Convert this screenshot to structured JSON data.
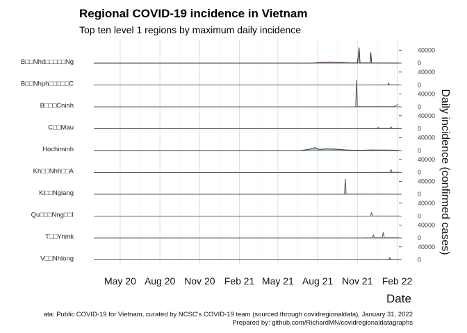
{
  "chart_data": {
    "type": "line",
    "title": "Regional COVID-19 incidence in Vietnam",
    "subtitle": "Top ten level 1 regions by maximum daily incidence",
    "xlabel": "Date",
    "ylabel": "Daily incidence (confirmed cases)",
    "x_ticks": [
      "May 20",
      "Aug 20",
      "Nov 20",
      "Feb 21",
      "May 21",
      "Aug 21",
      "Nov 21",
      "Feb 22"
    ],
    "y_ticks": [
      "40000",
      "0"
    ],
    "ylim": [
      0,
      60000
    ],
    "xlim": [
      "2020-03-01",
      "2022-02-05"
    ],
    "grid": true,
    "caption_line1": "ata: Public COVID-19 for Vietnam, curated by NCSC's COVID-19 team (sourced through covidregionaldata), January 31, 2022",
    "caption_line2": "Prepared by: github.com/RichardMN/covidregionaldatagraphs",
    "series": [
      {
        "name": "B□□Nhd□□□□□Ng",
        "color": "#e06666",
        "fill": true,
        "points": [
          [
            "2020-03-01",
            0
          ],
          [
            "2021-07-20",
            0
          ],
          [
            "2021-08-01",
            1500
          ],
          [
            "2021-08-15",
            3000
          ],
          [
            "2021-09-01",
            3500
          ],
          [
            "2021-09-15",
            2800
          ],
          [
            "2021-10-01",
            1500
          ],
          [
            "2021-10-15",
            800
          ],
          [
            "2021-11-01",
            500
          ],
          [
            "2021-11-05",
            48000
          ],
          [
            "2021-11-07",
            500
          ],
          [
            "2021-11-30",
            500
          ],
          [
            "2021-12-02",
            33000
          ],
          [
            "2021-12-04",
            600
          ],
          [
            "2022-02-05",
            300
          ]
        ]
      },
      {
        "name": "B□□Nhph□□□□□C",
        "color": "#555555",
        "fill": false,
        "points": [
          [
            "2020-03-01",
            0
          ],
          [
            "2021-11-01",
            0
          ],
          [
            "2021-12-01",
            300
          ],
          [
            "2022-01-10",
            500
          ],
          [
            "2022-01-12",
            6000
          ],
          [
            "2022-01-14",
            600
          ],
          [
            "2022-02-05",
            400
          ]
        ]
      },
      {
        "name": "B□□□Cninh",
        "color": "#555555",
        "fill": false,
        "points": [
          [
            "2020-03-01",
            0
          ],
          [
            "2021-10-25",
            0
          ],
          [
            "2021-10-28",
            500
          ],
          [
            "2021-10-30",
            84000
          ],
          [
            "2021-11-01",
            500
          ],
          [
            "2022-01-25",
            600
          ],
          [
            "2022-02-01",
            6000
          ],
          [
            "2022-02-03",
            8000
          ]
        ]
      },
      {
        "name": "C□□Mau",
        "color": "#555555",
        "fill": false,
        "points": [
          [
            "2020-03-01",
            0
          ],
          [
            "2021-11-01",
            0
          ],
          [
            "2021-12-15",
            400
          ],
          [
            "2021-12-20",
            4000
          ],
          [
            "2021-12-22",
            500
          ],
          [
            "2022-01-15",
            600
          ],
          [
            "2022-01-18",
            5500
          ],
          [
            "2022-01-20",
            500
          ],
          [
            "2022-02-05",
            400
          ]
        ]
      },
      {
        "name": "Hochiminh",
        "color": "#3aa365",
        "fill": true,
        "points": [
          [
            "2020-03-01",
            0
          ],
          [
            "2021-06-20",
            0
          ],
          [
            "2021-07-01",
            1500
          ],
          [
            "2021-07-15",
            4500
          ],
          [
            "2021-07-25",
            9000
          ],
          [
            "2021-08-05",
            3500
          ],
          [
            "2021-08-20",
            5000
          ],
          [
            "2021-09-05",
            4500
          ],
          [
            "2021-09-20",
            3500
          ],
          [
            "2021-10-05",
            2000
          ],
          [
            "2021-10-25",
            1000
          ],
          [
            "2021-11-15",
            1200
          ],
          [
            "2021-12-01",
            2000
          ],
          [
            "2021-12-15",
            1500
          ],
          [
            "2022-01-10",
            1500
          ],
          [
            "2022-02-05",
            800
          ]
        ]
      },
      {
        "name": "Kh□□Nhh□□A",
        "color": "#555555",
        "fill": false,
        "points": [
          [
            "2020-03-01",
            0
          ],
          [
            "2021-11-01",
            0
          ],
          [
            "2021-12-20",
            300
          ],
          [
            "2022-01-15",
            500
          ],
          [
            "2022-01-18",
            8000
          ],
          [
            "2022-01-20",
            600
          ],
          [
            "2022-02-05",
            400
          ]
        ]
      },
      {
        "name": "Ki□□Ngiang",
        "color": "#555555",
        "fill": false,
        "points": [
          [
            "2020-03-01",
            0
          ],
          [
            "2021-09-15",
            0
          ],
          [
            "2021-09-25",
            300
          ],
          [
            "2021-10-02",
            500
          ],
          [
            "2021-10-04",
            47000
          ],
          [
            "2021-10-06",
            500
          ],
          [
            "2022-02-05",
            200
          ]
        ]
      },
      {
        "name": "Qu□□□Nng□□I",
        "color": "#555555",
        "fill": false,
        "points": [
          [
            "2020-03-01",
            0
          ],
          [
            "2021-11-01",
            0
          ],
          [
            "2021-12-01",
            300
          ],
          [
            "2021-12-04",
            10000
          ],
          [
            "2021-12-06",
            400
          ],
          [
            "2022-02-05",
            300
          ]
        ]
      },
      {
        "name": "T□□Ynink",
        "color": "#555555",
        "fill": false,
        "points": [
          [
            "2020-03-01",
            0
          ],
          [
            "2021-11-15",
            0
          ],
          [
            "2021-12-05",
            400
          ],
          [
            "2021-12-08",
            9000
          ],
          [
            "2021-12-10",
            500
          ],
          [
            "2021-12-28",
            500
          ],
          [
            "2021-12-31",
            18000
          ],
          [
            "2022-01-02",
            600
          ],
          [
            "2022-02-05",
            400
          ]
        ]
      },
      {
        "name": "V□□Nhlong",
        "color": "#555555",
        "fill": false,
        "points": [
          [
            "2020-03-01",
            0
          ],
          [
            "2021-11-01",
            0
          ],
          [
            "2021-12-20",
            300
          ],
          [
            "2022-01-13",
            500
          ],
          [
            "2022-01-15",
            7000
          ],
          [
            "2022-01-17",
            500
          ],
          [
            "2022-02-05",
            300
          ]
        ]
      }
    ]
  }
}
